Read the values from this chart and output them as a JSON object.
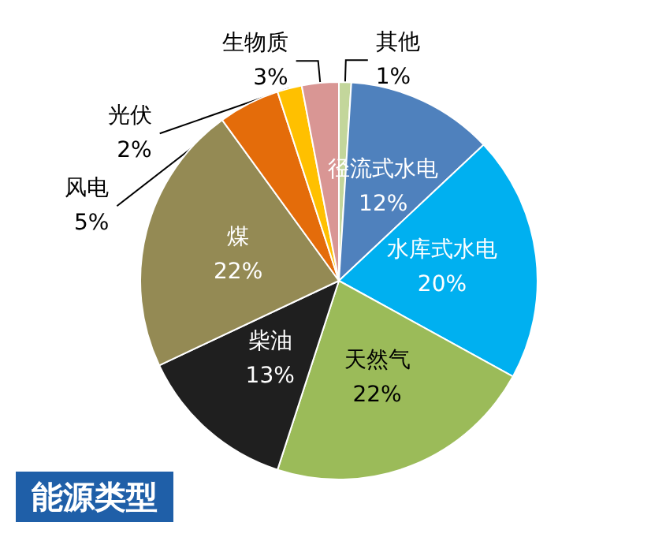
{
  "chart_data": {
    "type": "pie",
    "title": "能源类型",
    "categories": [
      "其他",
      "径流式水电",
      "水库式水电",
      "天然气",
      "柴油",
      "煤",
      "风电",
      "光伏",
      "生物质"
    ],
    "values": [
      1,
      12,
      20,
      22,
      13,
      22,
      5,
      2,
      3
    ],
    "value_labels": [
      "1%",
      "12%",
      "20%",
      "22%",
      "13%",
      "22%",
      "5%",
      "2%",
      "3%"
    ],
    "colors": [
      "#c3d69b",
      "#4f81bd",
      "#00b0f0",
      "#9bbb59",
      "#1f1f1f",
      "#948a54",
      "#e46c0a",
      "#ffc000",
      "#d99694"
    ]
  }
}
